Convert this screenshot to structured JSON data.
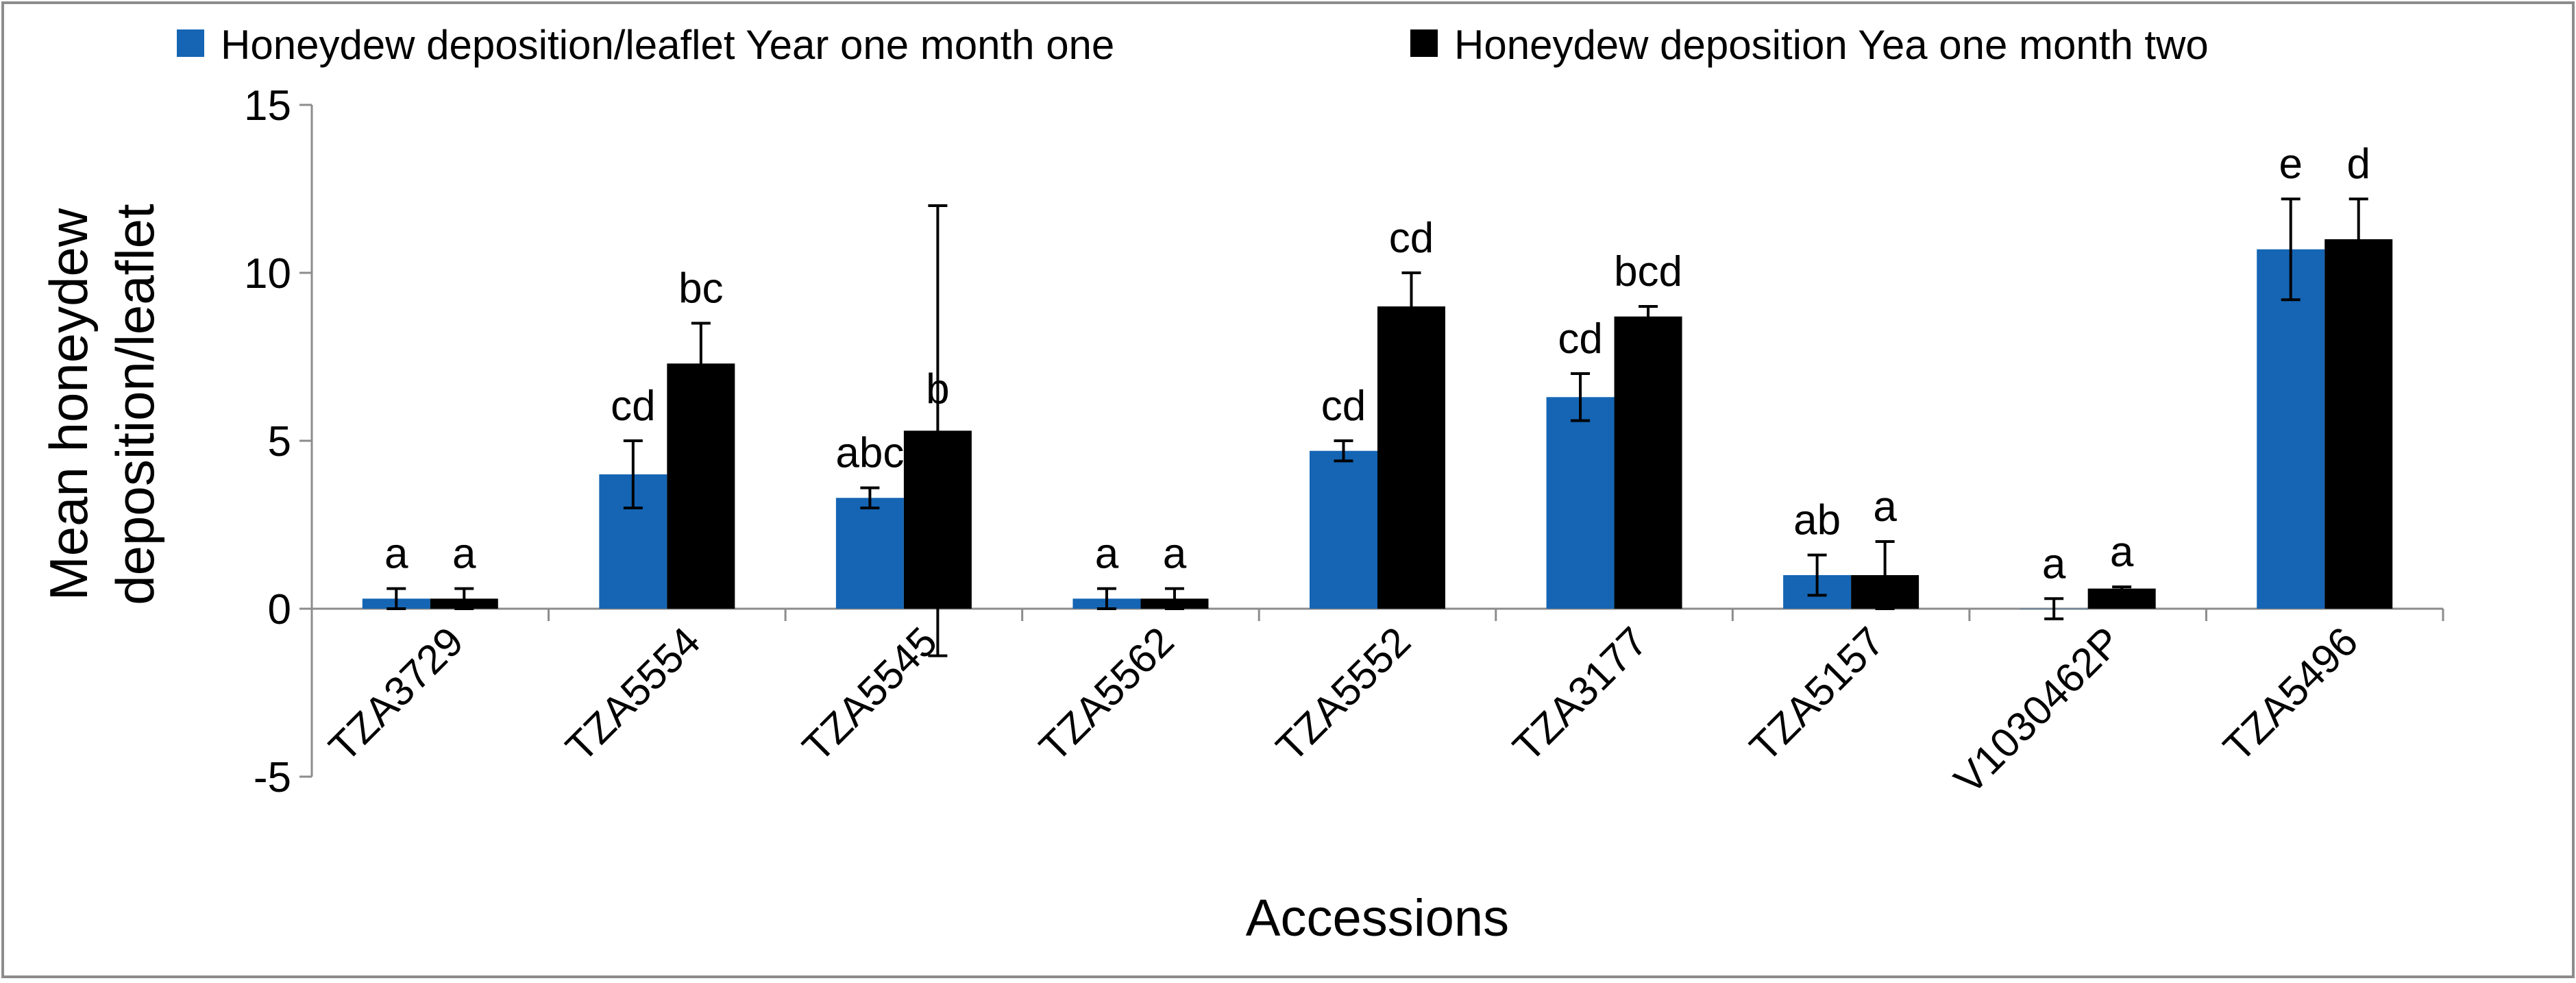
{
  "chart_data": {
    "type": "bar",
    "title": "",
    "xlabel": "Accessions",
    "ylabel_lines": [
      "Mean honeydew",
      "deposition/leaflet"
    ],
    "ylim": [
      -5,
      15
    ],
    "yticks": [
      -5,
      0,
      5,
      10,
      15
    ],
    "yticks_labels": [
      "-5",
      "0",
      "5",
      "10",
      "15"
    ],
    "grid": false,
    "legend_position": "top",
    "categories": [
      "TZA3729",
      "TZA5554",
      "TZA5545",
      "TZA5562",
      "TZA5552",
      "TZA3177",
      "TZA5157",
      "V1030462P",
      "TZA5496"
    ],
    "series": [
      {
        "name": "Honeydew deposition/leaflet Year one month one",
        "color": "#1565b4",
        "values": [
          0.3,
          4.0,
          3.3,
          0.3,
          4.7,
          6.3,
          1.0,
          0.0,
          10.7
        ],
        "errors": [
          0.3,
          1.0,
          0.3,
          0.3,
          0.3,
          0.7,
          0.6,
          0.3,
          1.5
        ],
        "letters": [
          "a",
          "cd",
          "abc",
          "a",
          "cd",
          "cd",
          "ab",
          "a",
          "e"
        ]
      },
      {
        "name": "Honeydew deposition Yea one month two",
        "color": "#000000",
        "values": [
          0.3,
          7.3,
          5.3,
          0.3,
          9.0,
          8.7,
          1.0,
          0.6,
          11.0
        ],
        "errors": [
          0.3,
          1.2,
          6.7,
          0.3,
          1.0,
          0.3,
          1.0,
          0.05,
          1.2
        ],
        "letters": [
          "a",
          "bc",
          "b",
          "a",
          "cd",
          "bcd",
          "a",
          "a",
          "d"
        ]
      }
    ]
  }
}
